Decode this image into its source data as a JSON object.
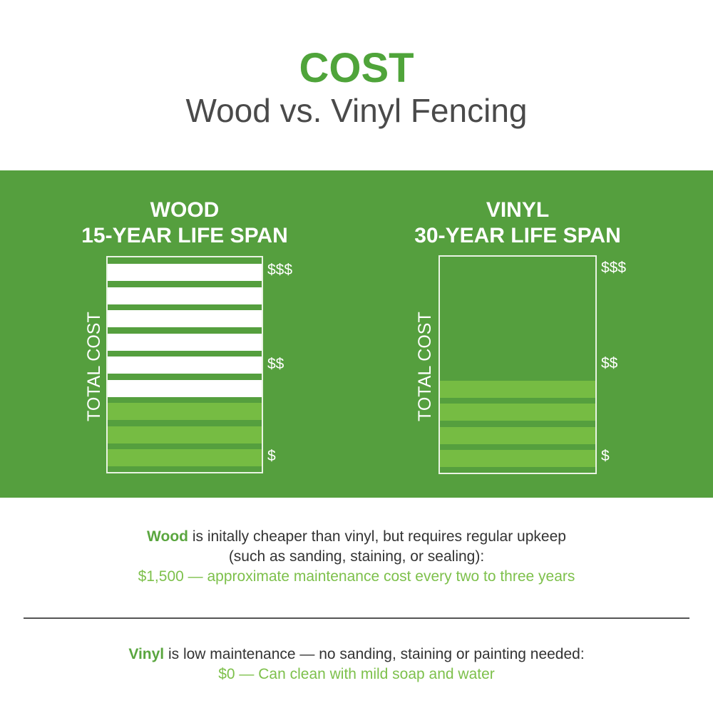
{
  "header": {
    "title": "COST",
    "subtitle": "Wood vs. Vinyl Fencing"
  },
  "colors": {
    "band": "#559f3e",
    "maintenance": "#ffffff",
    "initial": "#76bc43",
    "accent": "#4fa43a"
  },
  "chart_data": [
    {
      "type": "bar",
      "title_line1": "WOOD",
      "title_line2": "15-YEAR LIFE SPAN",
      "ylabel": "TOTAL COST",
      "yticks": [
        "$$$",
        "$$",
        "$"
      ],
      "segments": {
        "initial_cost": 3,
        "maintenance_cost": 6
      }
    },
    {
      "type": "bar",
      "title_line1": "VINYL",
      "title_line2": "30-YEAR LIFE SPAN",
      "ylabel": "TOTAL COST",
      "yticks": [
        "$$$",
        "$$",
        "$"
      ],
      "segments": {
        "initial_cost": 4,
        "maintenance_cost": 0
      }
    }
  ],
  "wood_note": {
    "bold": "Wood",
    "line1": " is initally cheaper than vinyl, but requires regular upkeep",
    "line2": "(such as sanding, staining, or sealing):",
    "line3": "$1,500 — approximate maintenance cost every two to three years"
  },
  "vinyl_note": {
    "bold": "Vinyl",
    "line1": " is low maintenance — no sanding, staining or painting needed:",
    "line2": "$0 — Can clean with mild soap and water"
  }
}
